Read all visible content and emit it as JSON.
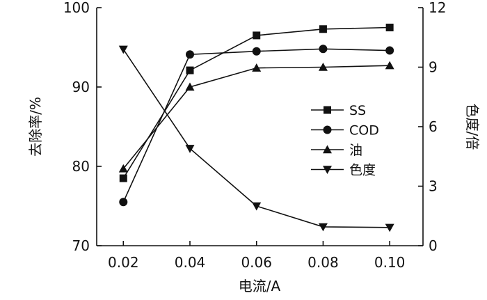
{
  "chart_data": {
    "type": "line",
    "title": "",
    "xlabel": "电流/A",
    "ylabel_left": "去除率/%",
    "ylabel_right": "色度/倍",
    "categories": [
      "0.02",
      "0.04",
      "0.06",
      "0.08",
      "0.10"
    ],
    "x": [
      0.02,
      0.04,
      0.06,
      0.08,
      0.1
    ],
    "xlim": [
      0.012,
      0.11
    ],
    "ylim_left": [
      70,
      100
    ],
    "ylim_right": [
      0,
      12
    ],
    "yticks_left": [
      "70",
      "80",
      "90",
      "100"
    ],
    "yticks_right": [
      "0",
      "3",
      "6",
      "9",
      "12"
    ],
    "grid": false,
    "legend_position": "right-center",
    "series": [
      {
        "name": "SS",
        "axis": "left",
        "marker": "square",
        "values": [
          78.5,
          92.1,
          96.5,
          97.3,
          97.5
        ]
      },
      {
        "name": "COD",
        "axis": "left",
        "marker": "circle",
        "values": [
          75.5,
          94.1,
          94.5,
          94.8,
          94.6
        ]
      },
      {
        "name": "油",
        "axis": "left",
        "marker": "triangle-up",
        "values": [
          79.7,
          90.0,
          92.4,
          92.5,
          92.7
        ]
      },
      {
        "name": "色度",
        "axis": "right",
        "marker": "triangle-down",
        "values": [
          9.9,
          4.9,
          2.0,
          0.95,
          0.92
        ]
      }
    ]
  }
}
